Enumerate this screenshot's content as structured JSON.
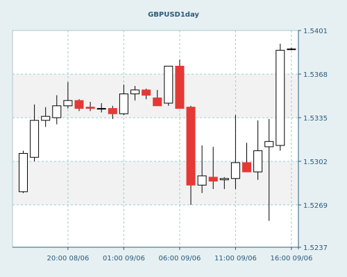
{
  "chart_data": {
    "type": "candlestick",
    "title": "GBPUSD1day",
    "ylim": [
      1.5237,
      1.5401
    ],
    "yticks": [
      "1.5401",
      "1.5368",
      "1.5335",
      "1.5302",
      "1.5269",
      "1.5237"
    ],
    "xticks": [
      "20:00 08/06",
      "01:00 09/06",
      "06:00 09/06",
      "11:00 09/06",
      "16:00 09/06"
    ],
    "xtick_candle_index": [
      4,
      9,
      14,
      19,
      24
    ],
    "grid": true,
    "colors": {
      "background": "#e6f0f3",
      "plot_background": "#ffffff",
      "alt_band": "#f2f2f2",
      "grid": "#99cccc",
      "text": "#2b5a78",
      "bull_fill": "#ffffff",
      "bear_fill": "#e53935",
      "outline": "#000000",
      "axis": "#2b5a78"
    },
    "candles": [
      {
        "open": 1.5279,
        "high": 1.531,
        "low": 1.5278,
        "close": 1.5308
      },
      {
        "open": 1.5305,
        "high": 1.5345,
        "low": 1.5302,
        "close": 1.5333
      },
      {
        "open": 1.5333,
        "high": 1.5343,
        "low": 1.5328,
        "close": 1.5336
      },
      {
        "open": 1.5335,
        "high": 1.5352,
        "low": 1.533,
        "close": 1.5344
      },
      {
        "open": 1.5344,
        "high": 1.5362,
        "low": 1.5342,
        "close": 1.5348
      },
      {
        "open": 1.5348,
        "high": 1.5349,
        "low": 1.534,
        "close": 1.5342
      },
      {
        "open": 1.5343,
        "high": 1.5347,
        "low": 1.534,
        "close": 1.5342
      },
      {
        "open": 1.5342,
        "high": 1.5346,
        "low": 1.5339,
        "close": 1.5342
      },
      {
        "open": 1.5342,
        "high": 1.5344,
        "low": 1.5334,
        "close": 1.5338
      },
      {
        "open": 1.5338,
        "high": 1.536,
        "low": 1.5337,
        "close": 1.5353
      },
      {
        "open": 1.5353,
        "high": 1.5359,
        "low": 1.5348,
        "close": 1.5356
      },
      {
        "open": 1.5356,
        "high": 1.5357,
        "low": 1.5349,
        "close": 1.5352
      },
      {
        "open": 1.535,
        "high": 1.5356,
        "low": 1.5345,
        "close": 1.5344
      },
      {
        "open": 1.5346,
        "high": 1.5374,
        "low": 1.5344,
        "close": 1.5374
      },
      {
        "open": 1.5374,
        "high": 1.5379,
        "low": 1.5343,
        "close": 1.5342
      },
      {
        "open": 1.5343,
        "high": 1.5344,
        "low": 1.5269,
        "close": 1.5284
      },
      {
        "open": 1.5284,
        "high": 1.5314,
        "low": 1.5278,
        "close": 1.5291
      },
      {
        "open": 1.529,
        "high": 1.5313,
        "low": 1.5281,
        "close": 1.5287
      },
      {
        "open": 1.5288,
        "high": 1.529,
        "low": 1.5281,
        "close": 1.5289
      },
      {
        "open": 1.5289,
        "high": 1.5337,
        "low": 1.5281,
        "close": 1.5301
      },
      {
        "open": 1.5301,
        "high": 1.5316,
        "low": 1.5294,
        "close": 1.5294
      },
      {
        "open": 1.5294,
        "high": 1.5333,
        "low": 1.5288,
        "close": 1.531
      },
      {
        "open": 1.5313,
        "high": 1.5334,
        "low": 1.5257,
        "close": 1.5317
      },
      {
        "open": 1.5314,
        "high": 1.5391,
        "low": 1.531,
        "close": 1.5386
      },
      {
        "open": 1.5387,
        "high": 1.5388,
        "low": 1.5386,
        "close": 1.5387
      }
    ]
  }
}
